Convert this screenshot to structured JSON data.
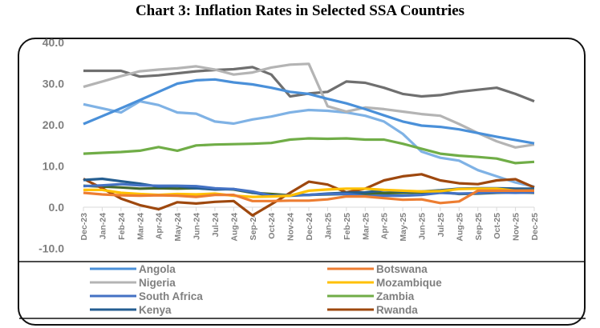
{
  "chart_data": {
    "type": "line",
    "title": "Chart 3: Inflation Rates in Selected SSA Countries",
    "xlabel": "",
    "ylabel": "",
    "ylim": [
      -10,
      40
    ],
    "yticks": [
      "40.0",
      "30.0",
      "20.0",
      "10.0",
      "0.0",
      "-10.0"
    ],
    "ytick_values": [
      40,
      30,
      20,
      10,
      0,
      -10
    ],
    "grid": false,
    "legend": "bottom",
    "categories": [
      "Dec-23",
      "Jan-24",
      "Feb-24",
      "Mar-24",
      "Apr-24",
      "May-24",
      "Jun-24",
      "Jul-24",
      "Aug-24",
      "Sep-24",
      "Oct-24",
      "Nov-24",
      "Dec-24",
      "Jan-25",
      "Feb-25",
      "Mar-25",
      "Apr-25",
      "May-25",
      "Jun-25",
      "Jul-25",
      "Aug-25",
      "Sep-25",
      "Oct-25",
      "Nov-25",
      "Dec-25"
    ],
    "series": [
      {
        "name": "Angola",
        "color": "#4a90d9",
        "values": [
          20.2,
          22.1,
          24,
          26,
          28,
          30,
          30.8,
          31,
          30.3,
          29.8,
          29,
          28,
          27.5,
          26.3,
          25.2,
          23.8,
          22.3,
          20.8,
          19.8,
          19.5,
          18.9,
          18,
          17.1,
          16.3,
          15.5
        ]
      },
      {
        "name": "Botswana",
        "color": "#ed7d31",
        "values": [
          3.5,
          3.1,
          2.9,
          2.8,
          2.9,
          2.8,
          2.5,
          3,
          3,
          1.5,
          1.5,
          1.6,
          1.6,
          1.9,
          2.6,
          2.6,
          2.2,
          1.8,
          1.9,
          1,
          1.4,
          4,
          4,
          4,
          4
        ]
      },
      {
        "name": "Nigeria",
        "color": "#b4b4b4",
        "values": [
          29.2,
          30.5,
          31.8,
          33,
          33.4,
          33.7,
          34.2,
          33.4,
          32.2,
          32.7,
          33.9,
          34.6,
          34.8,
          24.5,
          23.2,
          24.2,
          23.8,
          23.2,
          22.6,
          22.2,
          20.2,
          18,
          16,
          14.5,
          15.2
        ]
      },
      {
        "name": "Mozambique",
        "color": "#ffc000",
        "values": [
          4.2,
          4.2,
          3.5,
          3.2,
          3,
          3.2,
          3.1,
          3.3,
          2.8,
          2.5,
          2.6,
          2.8,
          4,
          4.3,
          4.5,
          4.5,
          4.2,
          4,
          3.8,
          3.9,
          4.4,
          4.5,
          4.5,
          4,
          4
        ]
      },
      {
        "name": "South Africa",
        "color": "#4472c4",
        "values": [
          5.1,
          5.3,
          5.6,
          5.3,
          5.2,
          5.2,
          5.1,
          4.6,
          4.4,
          3.8,
          2.8,
          2.9,
          3,
          3.2,
          3.2,
          2.7,
          2.8,
          2.8,
          3,
          3.5,
          3.3,
          3.4,
          3.6,
          3.5,
          3.6
        ]
      },
      {
        "name": "Zambia",
        "color": "#70ad47",
        "values": [
          13,
          13.2,
          13.4,
          13.7,
          14.6,
          13.7,
          15,
          15.2,
          15.3,
          15.4,
          15.6,
          16.4,
          16.7,
          16.6,
          16.7,
          16.4,
          16.4,
          15.4,
          14.2,
          13,
          12.5,
          12.2,
          11.8,
          10.7,
          11
        ]
      },
      {
        "name": "Kenya",
        "color": "#255e91",
        "values": [
          6.6,
          6.9,
          6.3,
          5.7,
          5,
          5.1,
          4.6,
          4.3,
          4.4,
          3.6,
          2.7,
          2.8,
          3,
          3.3,
          3.5,
          3.6,
          4.1,
          3.8,
          3.8,
          4.1,
          4.5,
          4.6,
          4.6,
          4.5,
          4.5
        ]
      },
      {
        "name": "Rwanda",
        "color": "#9e480e",
        "values": [
          6.9,
          4.6,
          2.1,
          0.5,
          -0.5,
          1.2,
          0.9,
          1.3,
          1.5,
          -2,
          0.7,
          3.5,
          6.2,
          5.5,
          3.6,
          4.5,
          6.5,
          7.5,
          8,
          6.5,
          5.8,
          5.6,
          6.5,
          6.8,
          4.8
        ]
      },
      {
        "color": "#6f6f6f",
        "values": [
          33.1,
          33.1,
          33.1,
          31.7,
          32,
          32.5,
          33,
          33.3,
          33.5,
          34,
          32.2,
          26.9,
          27.6,
          28,
          30.5,
          30.2,
          29,
          27.5,
          26.9,
          27.2,
          28,
          28.5,
          29,
          27.5,
          25.7
        ]
      },
      {
        "color": "#7fb2e5",
        "values": [
          25,
          24,
          23,
          25.7,
          24.8,
          23,
          22.7,
          20.8,
          20.3,
          21.3,
          22,
          23,
          23.6,
          23.4,
          23,
          22.2,
          20.8,
          17.8,
          13.5,
          12,
          11.3,
          9,
          7.5,
          6,
          5
        ]
      },
      {
        "color": "#43682b",
        "values": [
          5.2,
          5,
          4.8,
          4.5,
          4.6,
          4.5,
          4.6,
          4.5,
          4.3,
          3.5,
          3.2,
          2.9,
          3,
          3.1,
          3.2,
          3.3,
          3.4,
          3.5,
          3.6,
          3.7,
          3.2,
          3.3,
          3.5,
          3.6,
          3.5
        ]
      }
    ]
  }
}
